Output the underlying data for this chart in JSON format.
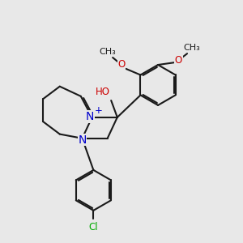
{
  "background_color": "#e8e8e8",
  "bond_color": "#1a1a1a",
  "nitrogen_color": "#0000cc",
  "oxygen_color": "#cc0000",
  "chlorine_color": "#00aa00",
  "lw": 1.5,
  "fig_size": [
    3.0,
    3.0
  ],
  "dpi": 100,
  "xlim": [
    0.5,
    8.5
  ],
  "ylim": [
    0.3,
    8.8
  ]
}
